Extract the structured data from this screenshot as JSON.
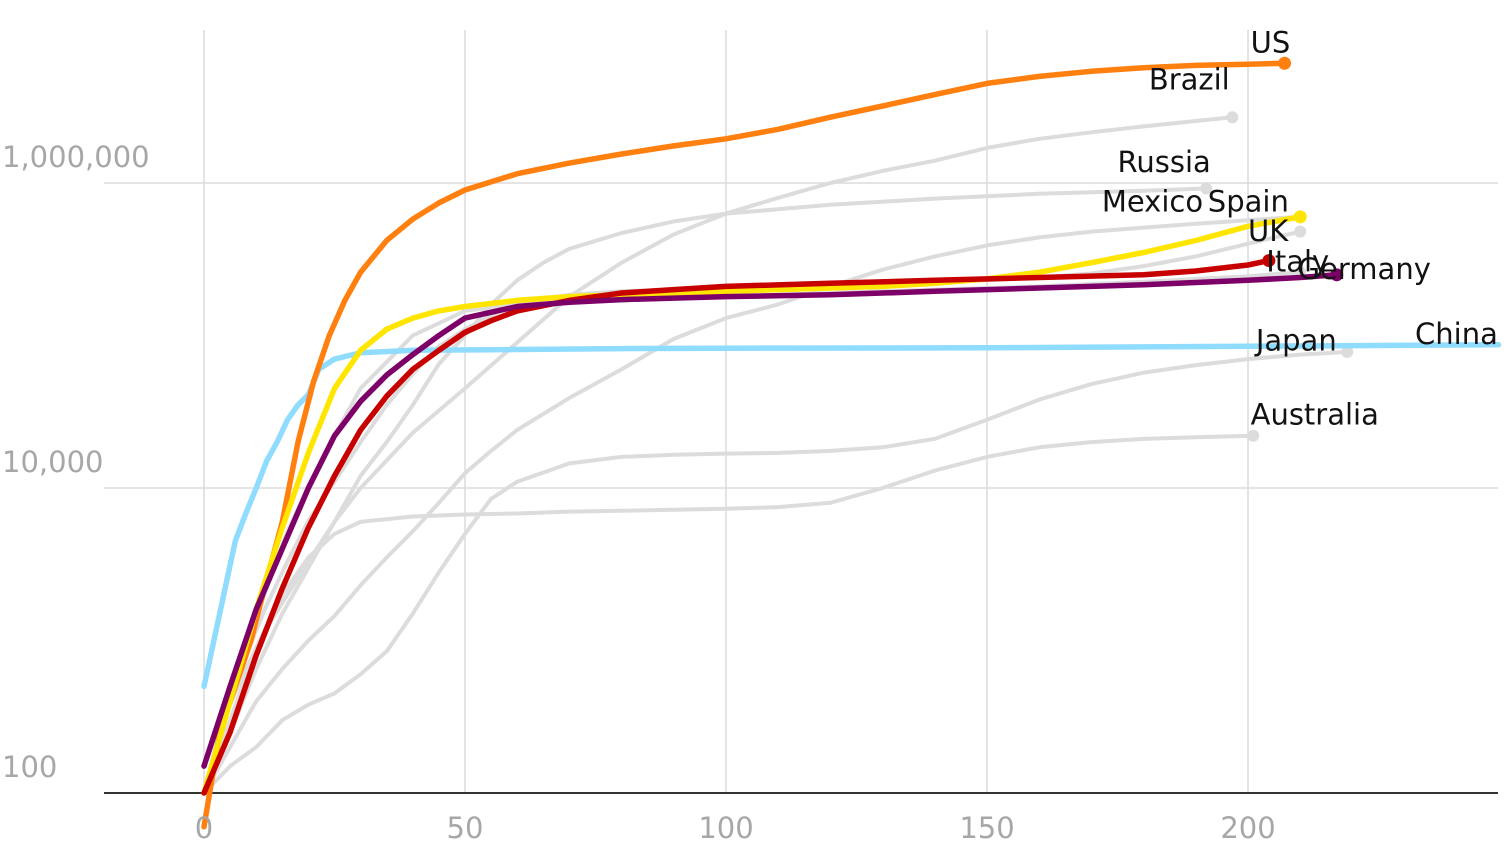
{
  "chart_data": {
    "type": "line",
    "title": "",
    "xlabel": "",
    "ylabel": "",
    "y_scale": "log",
    "xlim": [
      -19,
      248
    ],
    "ylim": [
      60,
      10000000
    ],
    "grid": "vertical and horizontal",
    "x_ticks": [
      {
        "value": 0,
        "label": "0"
      },
      {
        "value": 50,
        "label": "50"
      },
      {
        "value": 100,
        "label": "100"
      },
      {
        "value": 150,
        "label": "150"
      },
      {
        "value": 200,
        "label": "200"
      }
    ],
    "y_ticks": [
      {
        "value": 100,
        "label": "100"
      },
      {
        "value": 10000,
        "label": "10,000"
      },
      {
        "value": 1000000,
        "label": "1,000,000"
      }
    ],
    "highlight_colors": {
      "US": "#ff7f0f",
      "Spain": "#ffe500",
      "Italy": "#c70000",
      "Germany": "#7d0068",
      "China": "#90dcff",
      "grey": "#dcdcdc"
    },
    "series": [
      {
        "name": "Brazil",
        "color": "#dcdcdc",
        "x": [
          0,
          4,
          8,
          12,
          16,
          20,
          25,
          30,
          40,
          50,
          60,
          70,
          80,
          90,
          100,
          110,
          120,
          130,
          140,
          150,
          160,
          170,
          180,
          190,
          197
        ],
        "y": [
          100,
          320,
          650,
          1200,
          2000,
          3300,
          6000,
          10000,
          23000,
          45000,
          90000,
          180000,
          300000,
          460000,
          630000,
          800000,
          1000000,
          1200000,
          1400000,
          1700000,
          1950000,
          2150000,
          2350000,
          2550000,
          2700000
        ]
      },
      {
        "name": "Russia",
        "color": "#dcdcdc",
        "x": [
          0,
          5,
          10,
          15,
          20,
          25,
          30,
          35,
          40,
          45,
          50,
          55,
          60,
          65,
          70,
          80,
          90,
          100,
          120,
          140,
          160,
          180,
          192
        ],
        "y": [
          100,
          250,
          650,
          1500,
          3000,
          6000,
          12000,
          20000,
          35000,
          65000,
          100000,
          160000,
          230000,
          300000,
          370000,
          470000,
          560000,
          630000,
          720000,
          790000,
          850000,
          890000,
          920000
        ]
      },
      {
        "name": "Mexico",
        "color": "#dcdcdc",
        "x": [
          0,
          5,
          10,
          15,
          20,
          25,
          30,
          35,
          40,
          45,
          50,
          55,
          60,
          70,
          80,
          90,
          100,
          110,
          120,
          130,
          140,
          150,
          160,
          170,
          180,
          190,
          200,
          210
        ],
        "y": [
          100,
          200,
          400,
          650,
          1000,
          1450,
          2300,
          3500,
          5200,
          8000,
          12500,
          17500,
          24000,
          39000,
          60000,
          95000,
          130000,
          160000,
          210000,
          270000,
          330000,
          390000,
          440000,
          480000,
          510000,
          540000,
          570000,
          600000
        ]
      },
      {
        "name": "UK",
        "color": "#dcdcdc",
        "x": [
          0,
          4,
          8,
          12,
          16,
          20,
          25,
          30,
          35,
          40,
          45,
          50,
          60,
          70,
          80,
          90,
          100,
          110,
          120,
          130,
          140,
          150,
          160,
          170,
          180,
          190,
          200,
          210
        ],
        "y": [
          100,
          350,
          800,
          1700,
          3300,
          6100,
          11000,
          20000,
          35000,
          56000,
          85000,
          110000,
          165000,
          185000,
          195000,
          200000,
          205000,
          210000,
          215000,
          220000,
          225000,
          230000,
          240000,
          255000,
          285000,
          330000,
          400000,
          480000
        ]
      },
      {
        "name": "Germany",
        "color": "#dcdcdc",
        "x": [
          0,
          4,
          8,
          12,
          16,
          20,
          25,
          30,
          40,
          50,
          60,
          80,
          100,
          120,
          140,
          160,
          180,
          200,
          210
        ],
        "y": [
          100,
          300,
          900,
          2200,
          5200,
          10000,
          22000,
          45000,
          100000,
          145000,
          160000,
          170000,
          180000,
          190000,
          200000,
          210000,
          225000,
          245000,
          260000
        ]
      },
      {
        "name": "Japan",
        "color": "#dcdcdc",
        "x": [
          0,
          5,
          10,
          15,
          20,
          25,
          30,
          35,
          40,
          45,
          50,
          55,
          60,
          70,
          80,
          90,
          100,
          110,
          120,
          130,
          140,
          150,
          160,
          170,
          180,
          190,
          200,
          210,
          219
        ],
        "y": [
          100,
          150,
          200,
          300,
          380,
          450,
          600,
          850,
          1500,
          2800,
          5000,
          8500,
          11000,
          14500,
          16000,
          16500,
          16800,
          17000,
          17500,
          18500,
          21000,
          28000,
          38000,
          48000,
          57000,
          64000,
          70000,
          75000,
          78000
        ]
      },
      {
        "name": "Australia",
        "color": "#dcdcdc",
        "x": [
          0,
          5,
          10,
          15,
          20,
          25,
          30,
          40,
          50,
          60,
          70,
          80,
          90,
          100,
          110,
          120,
          130,
          140,
          150,
          160,
          170,
          180,
          190,
          201
        ],
        "y": [
          100,
          300,
          900,
          2000,
          3500,
          5000,
          6000,
          6500,
          6700,
          6800,
          7000,
          7100,
          7200,
          7300,
          7500,
          8000,
          10000,
          13000,
          16000,
          18500,
          20000,
          21000,
          21500,
          22000
        ]
      },
      {
        "name": "China",
        "color": "#90dcff",
        "x": [
          0,
          3,
          6,
          8,
          10,
          12,
          14,
          16,
          18,
          20,
          22,
          25,
          30,
          40,
          60,
          80,
          100,
          150,
          200,
          248
        ],
        "y": [
          500,
          1500,
          4500,
          6800,
          10000,
          15000,
          20000,
          28000,
          35000,
          41000,
          60000,
          70000,
          77000,
          80000,
          81000,
          82000,
          82500,
          83000,
          85000,
          87000
        ]
      },
      {
        "name": "US",
        "color": "#ff7f0f",
        "x": [
          0,
          3,
          6,
          9,
          12,
          15,
          18,
          21,
          24,
          27,
          30,
          35,
          40,
          45,
          50,
          60,
          70,
          80,
          90,
          100,
          110,
          120,
          130,
          140,
          150,
          160,
          170,
          180,
          190,
          200,
          207
        ],
        "y": [
          60,
          250,
          500,
          1000,
          2500,
          6000,
          20000,
          50000,
          100000,
          170000,
          260000,
          420000,
          580000,
          740000,
          900000,
          1150000,
          1350000,
          1550000,
          1750000,
          1950000,
          2250000,
          2700000,
          3200000,
          3800000,
          4500000,
          5000000,
          5400000,
          5700000,
          5900000,
          6000000,
          6100000
        ]
      },
      {
        "name": "Spain",
        "color": "#ffe500",
        "x": [
          0,
          5,
          10,
          15,
          20,
          25,
          30,
          35,
          40,
          45,
          50,
          60,
          70,
          80,
          90,
          100,
          110,
          120,
          130,
          140,
          150,
          160,
          170,
          180,
          190,
          200,
          210
        ],
        "y": [
          100,
          400,
          1600,
          5500,
          17000,
          45000,
          80000,
          110000,
          130000,
          145000,
          155000,
          170000,
          180000,
          185000,
          190000,
          195000,
          200000,
          205000,
          210000,
          220000,
          235000,
          260000,
          300000,
          350000,
          420000,
          520000,
          600000
        ]
      },
      {
        "name": "Italy",
        "color": "#c70000",
        "x": [
          0,
          5,
          10,
          15,
          20,
          25,
          30,
          35,
          40,
          45,
          50,
          55,
          60,
          70,
          80,
          90,
          100,
          120,
          140,
          160,
          180,
          190,
          200,
          204
        ],
        "y": [
          100,
          250,
          800,
          2200,
          5500,
          12000,
          24000,
          40000,
          60000,
          80000,
          105000,
          125000,
          145000,
          170000,
          190000,
          200000,
          210000,
          220000,
          230000,
          240000,
          250000,
          265000,
          290000,
          310000
        ]
      },
      {
        "name": "Germany",
        "color": "#7d0068",
        "x": [
          0,
          5,
          10,
          15,
          20,
          25,
          30,
          35,
          40,
          45,
          50,
          60,
          70,
          80,
          90,
          100,
          120,
          140,
          160,
          180,
          200,
          210,
          217
        ],
        "y": [
          150,
          500,
          1600,
          4000,
          10000,
          22000,
          37000,
          55000,
          75000,
          100000,
          130000,
          155000,
          165000,
          172000,
          176000,
          180000,
          185000,
          195000,
          205000,
          215000,
          230000,
          240000,
          250000
        ]
      }
    ],
    "labels": [
      {
        "text": "US",
        "x": 200.5,
        "y": 7200000
      },
      {
        "text": "Brazil",
        "x": 181,
        "y": 4100000
      },
      {
        "text": "Russia",
        "x": 175,
        "y": 1180000
      },
      {
        "text": "Mexico",
        "x": 172,
        "y": 650000
      },
      {
        "text": "Spain",
        "x": 192.3,
        "y": 650000
      },
      {
        "text": "UK",
        "x": 200,
        "y": 415000
      },
      {
        "text": "Italy",
        "x": 203.5,
        "y": 262000
      },
      {
        "text": "Germany",
        "x": 209.5,
        "y": 235000
      },
      {
        "text": "Japan",
        "x": 201.5,
        "y": 80000
      },
      {
        "text": "China",
        "x": 232,
        "y": 88000
      },
      {
        "text": "Australia",
        "x": 200.5,
        "y": 26000
      }
    ]
  }
}
